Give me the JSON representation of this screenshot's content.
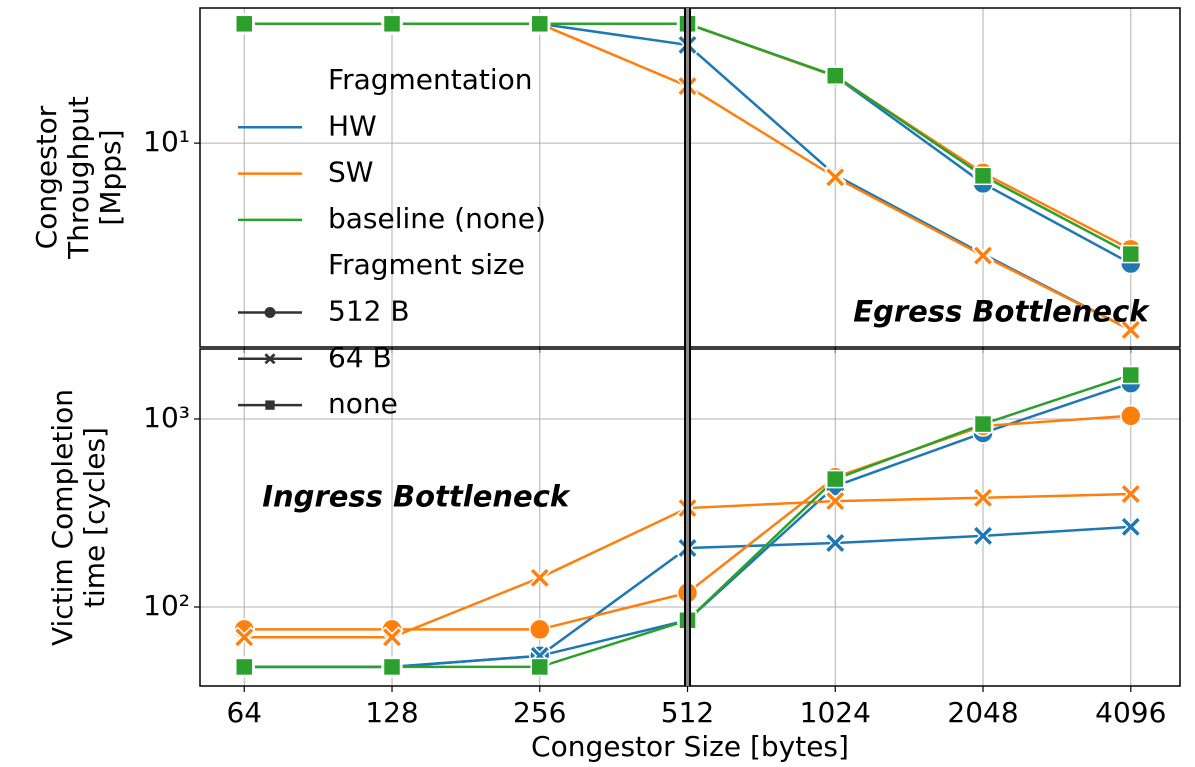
{
  "chart_data": [
    {
      "type": "line",
      "ylabel": [
        "Congestor",
        "Throughput",
        "[Mpps]"
      ],
      "x": [
        64,
        128,
        256,
        512,
        1024,
        2048,
        4096
      ],
      "xscale": "log2",
      "xlim": [
        52,
        5160
      ],
      "xticks": [
        64,
        128,
        256,
        512,
        1024,
        2048,
        4096
      ],
      "yscale": "log",
      "ylim": [
        1.53,
        34.7
      ],
      "yticks": [
        {
          "value": 10,
          "label": "10¹"
        }
      ],
      "grid": true,
      "vline": 512,
      "annotations": [
        {
          "text": "Egress Bottleneck",
          "x": 1024,
          "y": 1.8
        }
      ],
      "legend": {
        "hue_title": "Fragmentation",
        "hue": [
          {
            "name": "HW",
            "color": "#1f77b4"
          },
          {
            "name": "SW",
            "color": "#ff7f0e"
          },
          {
            "name": "baseline (none)",
            "color": "#2ca02c"
          }
        ],
        "style_title": "Fragment size",
        "style": [
          {
            "name": "512 B",
            "marker": "circle"
          },
          {
            "name": "64 B",
            "marker": "x"
          },
          {
            "name": "none",
            "marker": "square"
          }
        ]
      },
      "series": [
        {
          "color": "#1f77b4",
          "marker": "circle",
          "values": [
            30,
            30,
            30,
            30,
            18.5,
            6.9,
            3.3
          ]
        },
        {
          "color": "#1f77b4",
          "marker": "x",
          "values": [
            30,
            30,
            30,
            24.7,
            7.45,
            3.6,
            1.79
          ]
        },
        {
          "color": "#ff7f0e",
          "marker": "circle",
          "values": [
            30,
            30,
            30,
            30,
            18.5,
            7.6,
            3.76
          ]
        },
        {
          "color": "#ff7f0e",
          "marker": "x",
          "values": [
            30,
            30,
            30,
            16.9,
            7.3,
            3.55,
            1.79
          ]
        },
        {
          "color": "#2ca02c",
          "marker": "square",
          "values": [
            30,
            30,
            30,
            30,
            18.6,
            7.4,
            3.6
          ]
        }
      ]
    },
    {
      "type": "line",
      "ylabel": [
        "Victim Completion",
        "time [cycles]"
      ],
      "xlabel": "Congestor Size [bytes]",
      "x": [
        64,
        128,
        256,
        512,
        1024,
        2048,
        4096
      ],
      "xscale": "log2",
      "xlim": [
        52,
        5160
      ],
      "xticks": [
        64,
        128,
        256,
        512,
        1024,
        2048,
        4096
      ],
      "yscale": "log",
      "ylim": [
        38,
        2357
      ],
      "yticks": [
        {
          "value": 100,
          "label": "10²"
        },
        {
          "value": 1000,
          "label": "10³"
        }
      ],
      "grid": true,
      "annotations": [
        {
          "text": "Ingress Bottleneck",
          "x": 64,
          "y": 310
        }
      ],
      "series": [
        {
          "color": "#1f77b4",
          "marker": "circle",
          "values": [
            48,
            48,
            55,
            85,
            440,
            843,
            1550
          ]
        },
        {
          "color": "#1f77b4",
          "marker": "x",
          "values": [
            48,
            48,
            55,
            206,
            219,
            239,
            267
          ]
        },
        {
          "color": "#ff7f0e",
          "marker": "circle",
          "values": [
            76,
            76,
            76,
            119,
            490,
            918,
            1040
          ]
        },
        {
          "color": "#ff7f0e",
          "marker": "x",
          "values": [
            69,
            69,
            143,
            336,
            366,
            381,
            399
          ]
        },
        {
          "color": "#2ca02c",
          "marker": "square",
          "values": [
            48,
            48,
            48,
            85,
            479,
            940,
            1713
          ]
        }
      ]
    }
  ]
}
